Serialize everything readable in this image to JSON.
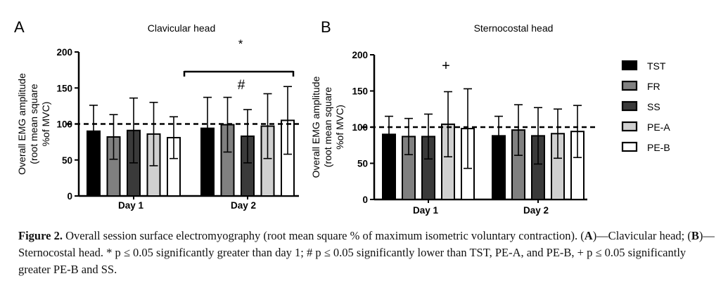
{
  "panels": [
    {
      "letter": "A",
      "chart_data": {
        "type": "bar",
        "title": "Clavicular head",
        "ylabel_lines": [
          "Overall EMG amplitude",
          "(root mean square",
          "%of MVC)"
        ],
        "categories": [
          "Day 1",
          "Day 2"
        ],
        "ylim": [
          0,
          200
        ],
        "yticks": [
          0,
          50,
          100,
          150,
          200
        ],
        "reference_line": 100,
        "series": [
          {
            "name": "TST",
            "values": [
              90,
              94
            ],
            "sd": [
              36,
              43
            ]
          },
          {
            "name": "FR",
            "values": [
              82,
              99
            ],
            "sd": [
              31,
              38
            ]
          },
          {
            "name": "SS",
            "values": [
              91,
              83
            ],
            "sd": [
              45,
              37
            ]
          },
          {
            "name": "PE-A",
            "values": [
              86,
              97
            ],
            "sd": [
              44,
              45
            ]
          },
          {
            "name": "PE-B",
            "values": [
              81,
              105
            ],
            "sd": [
              29,
              47
            ]
          }
        ],
        "annotations": [
          {
            "text": "*",
            "meaning": "bracket over Day 2"
          },
          {
            "text": "#",
            "over": "SS Day 2"
          }
        ]
      }
    },
    {
      "letter": "B",
      "chart_data": {
        "type": "bar",
        "title": "Sternocostal head",
        "ylabel_lines": [
          "Overall EMG amplitude",
          "(root mean square",
          "%of MVC)"
        ],
        "categories": [
          "Day 1",
          "Day 2"
        ],
        "ylim": [
          0,
          200
        ],
        "yticks": [
          0,
          50,
          100,
          150,
          200
        ],
        "reference_line": 100,
        "series": [
          {
            "name": "TST",
            "values": [
              90,
              88
            ],
            "sd": [
              25,
              27
            ]
          },
          {
            "name": "FR",
            "values": [
              87,
              96
            ],
            "sd": [
              25,
              35
            ]
          },
          {
            "name": "SS",
            "values": [
              87,
              88
            ],
            "sd": [
              31,
              39
            ]
          },
          {
            "name": "PE-A",
            "values": [
              104,
              91
            ],
            "sd": [
              45,
              34
            ]
          },
          {
            "name": "PE-B",
            "values": [
              98,
              94
            ],
            "sd": [
              55,
              36
            ]
          }
        ],
        "annotations": [
          {
            "text": "+",
            "over": "PE-A Day 1"
          }
        ]
      }
    }
  ],
  "legend": [
    {
      "label": "TST",
      "fill": "#000000"
    },
    {
      "label": "FR",
      "fill": "#808080"
    },
    {
      "label": "SS",
      "fill": "#3a3a3a"
    },
    {
      "label": "PE-A",
      "fill": "#d0d0d0"
    },
    {
      "label": "PE-B",
      "fill": "#ffffff"
    }
  ],
  "caption": {
    "label": "Figure 2.",
    "seg1": " Overall session surface electromyography (root mean square % of maximum isometric voluntary contraction). (",
    "a": "A",
    "seg2": ")—Clavicular head; (",
    "b": "B",
    "seg3": ")—Sternocostal head. * p ≤ 0.05 significantly greater than day 1; # p ≤ 0.05 significantly lower than TST, PE-A, and PE-B, + p ≤ 0.05 significantly greater PE-B and SS."
  }
}
